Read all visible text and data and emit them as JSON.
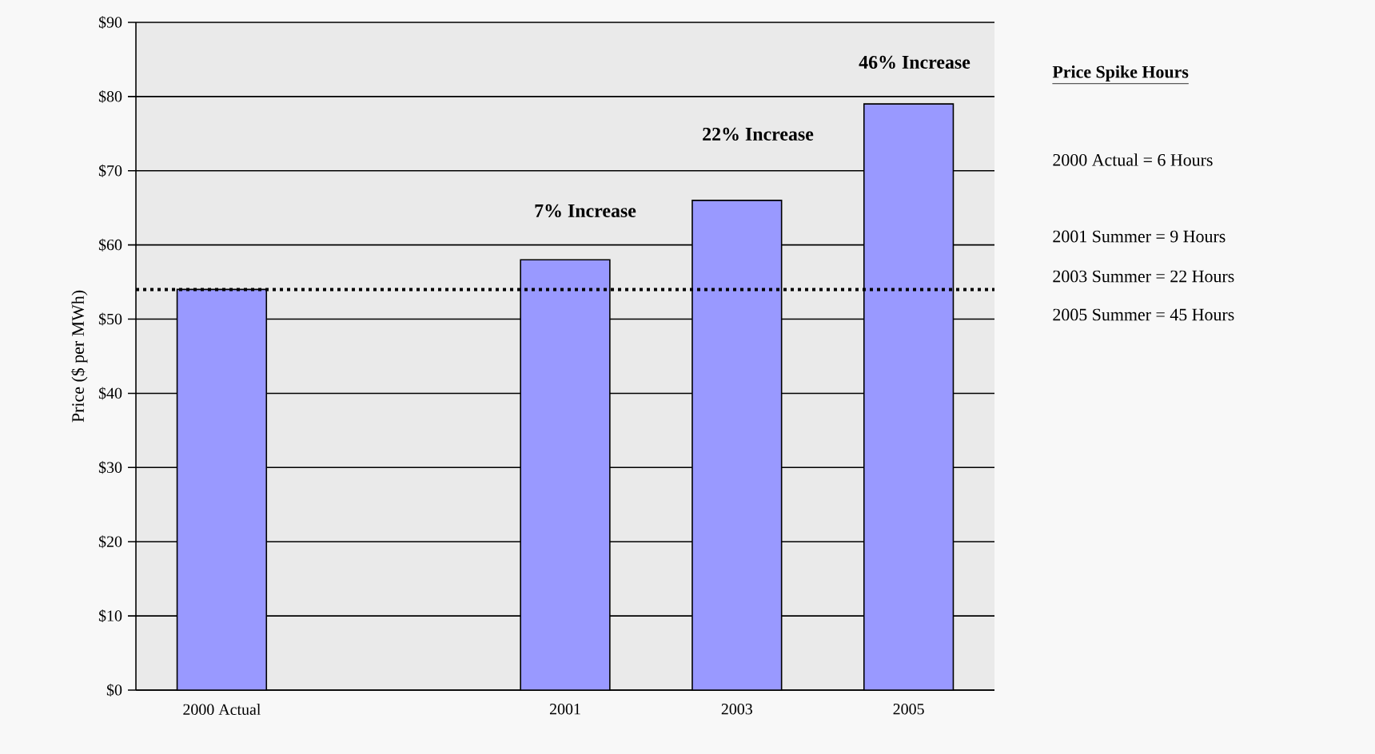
{
  "chart_data": {
    "type": "bar",
    "ylabel": "Price ($ per MWh)",
    "categories": [
      "2000 Actual",
      null,
      "2001",
      "2003",
      "2005"
    ],
    "values": [
      54,
      null,
      58,
      66,
      79
    ],
    "color": "#9999ff",
    "ylim": [
      0,
      90
    ],
    "yticks": [
      {
        "value": 0,
        "label": "$0"
      },
      {
        "value": 10,
        "label": "$10"
      },
      {
        "value": 20,
        "label": "$20"
      },
      {
        "value": 30,
        "label": "$30"
      },
      {
        "value": 40,
        "label": "$40"
      },
      {
        "value": 50,
        "label": "$50"
      },
      {
        "value": 60,
        "label": "$60"
      },
      {
        "value": 70,
        "label": "$70"
      },
      {
        "value": 80,
        "label": "$80"
      },
      {
        "value": 90,
        "label": "$90"
      }
    ],
    "grid": "y",
    "ref_lines": [
      {
        "axis": "y",
        "value": 54,
        "line_style": "dotted"
      }
    ],
    "annotations": [
      "7% Increase",
      "22% Increase",
      "46% Increase",
      "Price Spike Hours",
      "2000 Actual =  6 Hours",
      "2001 Summer =  9 Hours",
      "2003 Summer =  22 Hours",
      "2005 Summer =  45 Hours"
    ]
  }
}
